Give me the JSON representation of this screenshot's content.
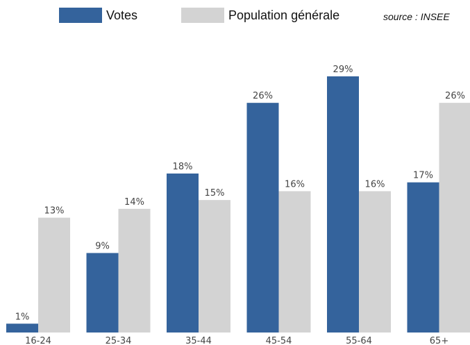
{
  "legend": [
    {
      "name": "Votes",
      "color": "#34639c"
    },
    {
      "name": "Population générale",
      "color": "#d3d3d3"
    }
  ],
  "source": "source : INSEE",
  "chart_data": {
    "type": "bar",
    "categories": [
      "16-24",
      "25-34",
      "35-44",
      "45-54",
      "55-64",
      "65+"
    ],
    "series": [
      {
        "name": "Votes",
        "values": [
          1,
          9,
          18,
          26,
          29,
          17
        ],
        "labels": [
          "1%",
          "9%",
          "18%",
          "26%",
          "29%",
          "17%"
        ],
        "color": "#34639c"
      },
      {
        "name": "Population générale",
        "values": [
          13,
          14,
          15,
          16,
          16,
          26
        ],
        "labels": [
          "13%",
          "14%",
          "15%",
          "16%",
          "16%",
          "26%"
        ],
        "color": "#d3d3d3"
      }
    ],
    "ylim": [
      0,
      29
    ],
    "title": "",
    "xlabel": "",
    "ylabel": "",
    "grid": false,
    "legend_position": "top"
  }
}
